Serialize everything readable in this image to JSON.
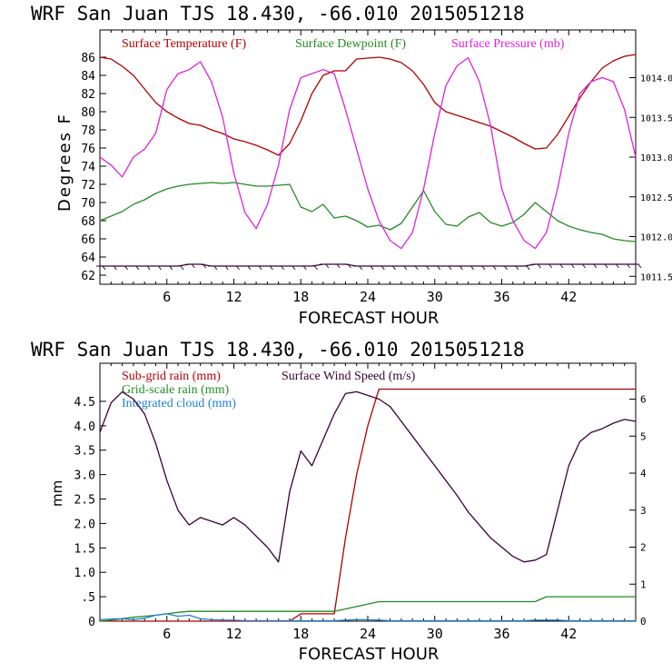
{
  "chart_data": [
    {
      "type": "line",
      "title": "WRF   San Juan TJS  18.430, -66.010  2015051218",
      "xlabel": "FORECAST HOUR",
      "ylabel": "Degrees F",
      "xlim": [
        0,
        48
      ],
      "ylim": [
        61,
        89
      ],
      "y2lim": [
        1011.4,
        1014.6
      ],
      "xticks": [
        "6",
        "12",
        "18",
        "24",
        "30",
        "36",
        "42"
      ],
      "yticks": [
        "62",
        "64",
        "66",
        "68",
        "70",
        "72",
        "74",
        "76",
        "78",
        "80",
        "82",
        "84",
        "86"
      ],
      "y2ticks": [
        "1011.5",
        "1012.0",
        "1012.5",
        "1013.0",
        "1013.5",
        "1014.0"
      ],
      "legend": [
        "Surface Temperature (F)",
        "Surface Dewpoint (F)",
        "Surface Pressure (mb)"
      ],
      "colors": {
        "temperature": "#b00000",
        "dewpoint": "#228b22",
        "pressure": "#dd22dd",
        "wind": "#380038"
      },
      "x": [
        0,
        1,
        2,
        3,
        4,
        5,
        6,
        7,
        8,
        9,
        10,
        11,
        12,
        13,
        14,
        15,
        16,
        17,
        18,
        19,
        20,
        21,
        22,
        23,
        24,
        25,
        26,
        27,
        28,
        29,
        30,
        31,
        32,
        33,
        34,
        35,
        36,
        37,
        38,
        39,
        40,
        41,
        42,
        43,
        44,
        45,
        46,
        47,
        48
      ],
      "series": [
        {
          "name": "Surface Temperature (F)",
          "axis": "left",
          "values": [
            86,
            85.8,
            85,
            84,
            82.5,
            81,
            80,
            79.3,
            78.7,
            78.5,
            78,
            77.6,
            77,
            76.7,
            76.3,
            75.8,
            75.2,
            76.5,
            79,
            82,
            84,
            84.5,
            84.5,
            85.8,
            85.9,
            86,
            85.8,
            85.4,
            84.5,
            83,
            81,
            80,
            79.6,
            79.2,
            78.8,
            78.4,
            77.8,
            77.2,
            76.5,
            75.9,
            76,
            77.5,
            79.5,
            81.5,
            83.3,
            84.8,
            85.6,
            86.1,
            86.3
          ]
        },
        {
          "name": "Surface Dewpoint (F)",
          "axis": "left",
          "values": [
            68,
            68.5,
            69,
            69.8,
            70.3,
            71,
            71.5,
            71.8,
            72,
            72.1,
            72.2,
            72.1,
            72.2,
            72,
            71.8,
            71.8,
            71.9,
            72,
            69.5,
            69,
            69.8,
            68.3,
            68.5,
            68,
            67.3,
            67.5,
            67,
            67.7,
            69.5,
            71.3,
            69,
            67.6,
            67.4,
            68.4,
            68.9,
            67.8,
            67.4,
            67.8,
            68.7,
            70,
            69,
            68,
            67.4,
            67,
            66.7,
            66.5,
            66,
            65.8,
            65.7
          ]
        },
        {
          "name": "Surface Pressure (mb)",
          "axis": "right",
          "values": [
            1013.0,
            1012.9,
            1012.75,
            1013.0,
            1013.1,
            1013.3,
            1013.85,
            1014.05,
            1014.1,
            1014.2,
            1013.95,
            1013.5,
            1012.8,
            1012.3,
            1012.1,
            1012.4,
            1012.9,
            1013.6,
            1014.0,
            1014.05,
            1014.1,
            1014.05,
            1013.6,
            1013.1,
            1012.6,
            1012.2,
            1011.95,
            1011.85,
            1012.05,
            1012.6,
            1013.3,
            1013.9,
            1014.15,
            1014.25,
            1013.95,
            1013.4,
            1012.6,
            1012.2,
            1011.95,
            1011.85,
            1012.05,
            1012.6,
            1013.3,
            1013.8,
            1013.95,
            1014.0,
            1013.95,
            1013.6,
            1013.0
          ]
        },
        {
          "name": "Surface Wind Speed (m/s)",
          "axis": "left",
          "values": [
            63,
            63,
            63,
            63,
            63,
            63,
            63,
            63,
            63.2,
            63.2,
            63,
            63,
            63,
            63,
            63,
            63,
            63,
            63,
            63,
            63,
            63.2,
            63.2,
            63.2,
            63,
            63,
            63,
            63,
            63,
            63,
            63,
            63,
            63,
            63,
            63,
            63,
            63,
            63,
            63,
            63,
            63.2,
            63.2,
            63.2,
            63.2,
            63.2,
            63.2,
            63.2,
            63.2,
            63.2,
            63.2
          ]
        }
      ]
    },
    {
      "type": "line",
      "title": "WRF   San Juan TJS  18.430, -66.010  2015051218",
      "xlabel": "FORECAST HOUR",
      "ylabel": "mm",
      "xlim": [
        0,
        48
      ],
      "ylim": [
        0,
        5.28
      ],
      "y2lim": [
        0,
        6.97
      ],
      "xticks": [
        "6",
        "12",
        "18",
        "24",
        "30",
        "36",
        "42"
      ],
      "yticks": [
        "0",
        ".5",
        "1.0",
        "1.5",
        "2.0",
        "2.5",
        "3.0",
        "3.5",
        "4.0",
        "4.5"
      ],
      "y2ticks": [
        "0",
        "1",
        "2",
        "3",
        "4",
        "5",
        "6"
      ],
      "legend": [
        "Sub-grid rain (mm)",
        "Grid-scale rain (mm)",
        "Integrated cloud (mm)",
        "Surface Wind Speed (m/s)"
      ],
      "colors": {
        "subgrid": "#b00000",
        "gridscale": "#228b22",
        "cloud": "#1e7fd0",
        "wind": "#380038"
      },
      "x": [
        0,
        1,
        2,
        3,
        4,
        5,
        6,
        7,
        8,
        9,
        10,
        11,
        12,
        13,
        14,
        15,
        16,
        17,
        18,
        19,
        20,
        21,
        22,
        23,
        24,
        25,
        26,
        27,
        28,
        29,
        30,
        31,
        32,
        33,
        34,
        35,
        36,
        37,
        38,
        39,
        40,
        41,
        42,
        43,
        44,
        45,
        46,
        47,
        48
      ],
      "series": [
        {
          "name": "Sub-grid rain (mm)",
          "axis": "left",
          "values": [
            0,
            0,
            0,
            0,
            0,
            0,
            0,
            0,
            0,
            0,
            0,
            0,
            0,
            0,
            0,
            0,
            0,
            0,
            0.15,
            0.15,
            0.15,
            0.15,
            1.7,
            3.0,
            4.0,
            4.75,
            4.75,
            4.75,
            4.75,
            4.75,
            4.75,
            4.75,
            4.75,
            4.75,
            4.75,
            4.75,
            4.75,
            4.75,
            4.75,
            4.75,
            4.75,
            4.75,
            4.75,
            4.75,
            4.75,
            4.75,
            4.75,
            4.75,
            4.75
          ]
        },
        {
          "name": "Grid-scale rain (mm)",
          "axis": "left",
          "values": [
            0,
            0.02,
            0.05,
            0.08,
            0.1,
            0.12,
            0.15,
            0.18,
            0.2,
            0.2,
            0.2,
            0.2,
            0.2,
            0.2,
            0.2,
            0.2,
            0.2,
            0.2,
            0.2,
            0.2,
            0.2,
            0.2,
            0.25,
            0.3,
            0.35,
            0.4,
            0.4,
            0.4,
            0.4,
            0.4,
            0.4,
            0.4,
            0.4,
            0.4,
            0.4,
            0.4,
            0.4,
            0.4,
            0.4,
            0.4,
            0.5,
            0.5,
            0.5,
            0.5,
            0.5,
            0.5,
            0.5,
            0.5,
            0.5
          ]
        },
        {
          "name": "Integrated cloud (mm)",
          "axis": "left",
          "values": [
            0.03,
            0.04,
            0.05,
            0.03,
            0.06,
            0.12,
            0.15,
            0.1,
            0.12,
            0.05,
            0.03,
            0.02,
            0.02,
            0.01,
            0.01,
            0.01,
            0.01,
            0.01,
            0.01,
            0.01,
            0.01,
            0.01,
            0.02,
            0.03,
            0.03,
            0.02,
            0.01,
            0.01,
            0.01,
            0.01,
            0.01,
            0.01,
            0.01,
            0.01,
            0.01,
            0.01,
            0.01,
            0.01,
            0.01,
            0.02,
            0.02,
            0.02,
            0.01,
            0.01,
            0.01,
            0.01,
            0.01,
            0.01,
            0.01
          ]
        },
        {
          "name": "Surface Wind Speed (m/s)",
          "axis": "right",
          "values": [
            5.1,
            5.9,
            6.2,
            6.0,
            5.6,
            4.8,
            3.8,
            3.0,
            2.6,
            2.8,
            2.7,
            2.6,
            2.8,
            2.6,
            2.3,
            2.0,
            1.6,
            3.5,
            4.6,
            4.2,
            4.9,
            5.6,
            6.15,
            6.2,
            6.1,
            6.0,
            5.8,
            5.4,
            5.0,
            4.6,
            4.2,
            3.8,
            3.4,
            2.95,
            2.6,
            2.25,
            2.0,
            1.75,
            1.6,
            1.65,
            1.8,
            3.0,
            4.2,
            4.85,
            5.1,
            5.2,
            5.35,
            5.45,
            5.4
          ]
        }
      ]
    }
  ]
}
